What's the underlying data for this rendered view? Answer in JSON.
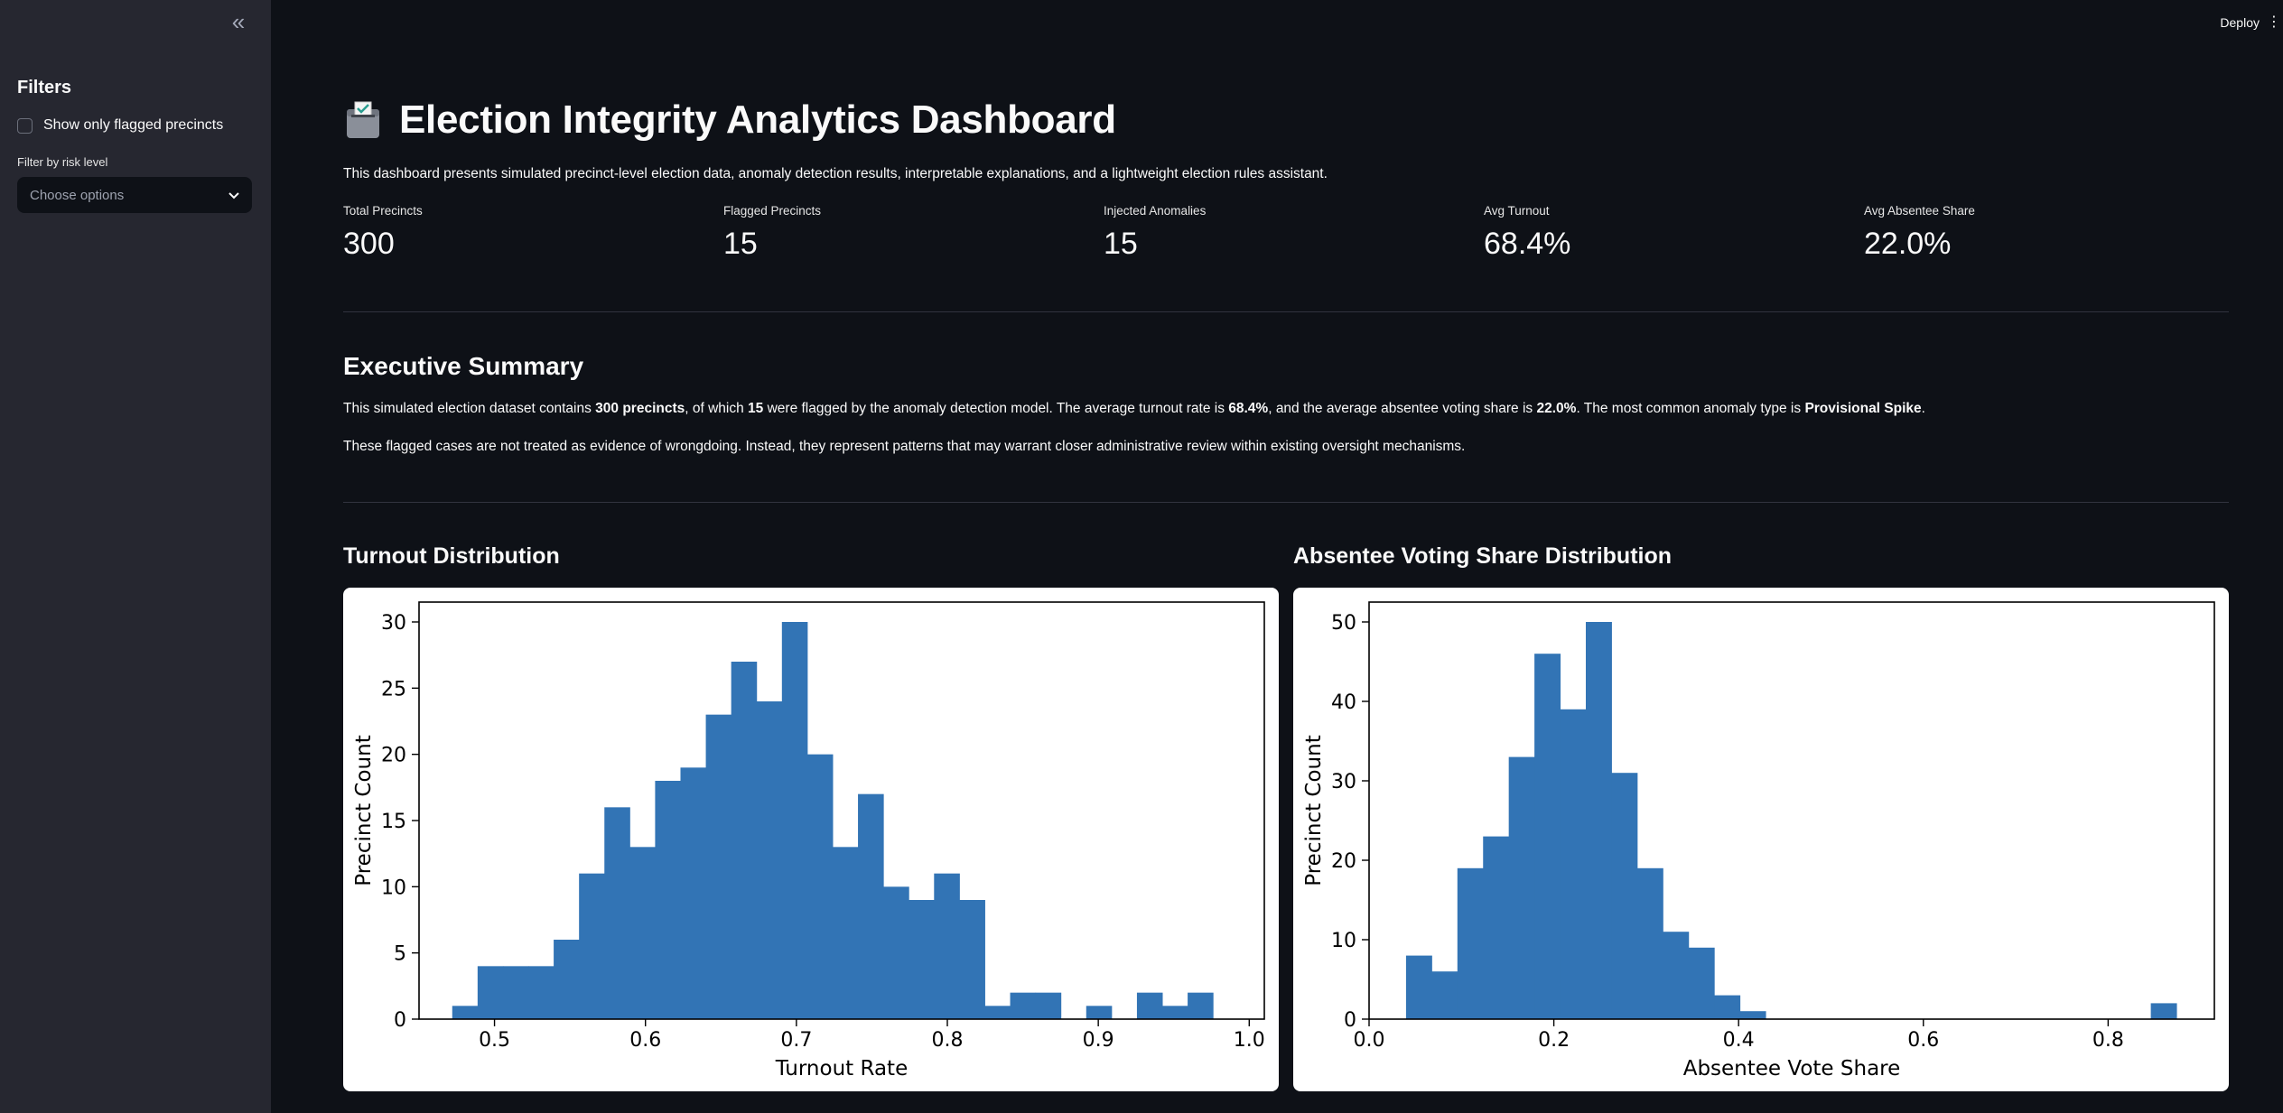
{
  "sidebar": {
    "collapse_icon": "double-chevron-left-icon",
    "title": "Filters",
    "checkbox_label": "Show only flagged precincts",
    "risk_label": "Filter by risk level",
    "risk_placeholder": "Choose options"
  },
  "header": {
    "deploy_label": "Deploy",
    "menu_icon": "⋮"
  },
  "main": {
    "title": "Election Integrity Analytics Dashboard",
    "intro": "This dashboard presents simulated precinct-level election data, anomaly detection results, interpretable explanations, and a lightweight election rules assistant.",
    "metrics": [
      {
        "label": "Total Precincts",
        "value": "300"
      },
      {
        "label": "Flagged Precincts",
        "value": "15"
      },
      {
        "label": "Injected Anomalies",
        "value": "15"
      },
      {
        "label": "Avg Turnout",
        "value": "68.4%"
      },
      {
        "label": "Avg Absentee Share",
        "value": "22.0%"
      }
    ],
    "summary_title": "Executive Summary",
    "summary_p1": {
      "a": "This simulated election dataset contains ",
      "b": "300 precincts",
      "c": ", of which ",
      "d": "15",
      "e": " were flagged by the anomaly detection model. The average turnout rate is ",
      "f": "68.4%",
      "g": ", and the average absentee voting share is ",
      "h": "22.0%",
      "i": ". The most common anomaly type is ",
      "j": "Provisional Spike",
      "k": "."
    },
    "summary_p2": "These flagged cases are not treated as evidence of wrongdoing. Instead, they represent patterns that may warrant closer administrative review within existing oversight mechanisms.",
    "turnout_title": "Turnout Distribution",
    "absentee_title": "Absentee Voting Share Distribution"
  },
  "colors": {
    "bar": "#3274b5",
    "bg": "#0e1117",
    "sidebar": "#262730"
  },
  "chart_data": [
    {
      "type": "bar",
      "title": "Turnout Distribution",
      "xlabel": "Turnout Rate",
      "ylabel": "Precinct Count",
      "bin_start": 0.472,
      "bin_width": 0.0168,
      "values": [
        1,
        4,
        4,
        4,
        6,
        11,
        16,
        13,
        18,
        19,
        23,
        27,
        24,
        30,
        20,
        13,
        17,
        10,
        9,
        11,
        9,
        1,
        2,
        2,
        0,
        1,
        0,
        2,
        1,
        2
      ],
      "xlim": [
        0.45,
        1.01
      ],
      "ylim": [
        0,
        31.5
      ],
      "xticks": [
        0.5,
        0.6,
        0.7,
        0.8,
        0.9,
        1.0
      ],
      "xtick_labels": [
        "0.5",
        "0.6",
        "0.7",
        "0.8",
        "0.9",
        "1.0"
      ],
      "yticks": [
        0,
        5,
        10,
        15,
        20,
        25,
        30
      ],
      "ytick_labels": [
        "0",
        "5",
        "10",
        "15",
        "20",
        "25",
        "30"
      ]
    },
    {
      "type": "bar",
      "title": "Absentee Voting Share Distribution",
      "xlabel": "Absentee Vote Share",
      "ylabel": "Precinct Count",
      "bin_start": 0.04,
      "bin_width": 0.0278,
      "values": [
        8,
        6,
        19,
        23,
        33,
        46,
        39,
        50,
        31,
        19,
        11,
        9,
        3,
        1,
        0,
        0,
        0,
        0,
        0,
        0,
        0,
        0,
        0,
        0,
        0,
        0,
        0,
        0,
        0,
        2
      ],
      "xlim": [
        0.0,
        0.915
      ],
      "ylim": [
        0,
        52.5
      ],
      "xticks": [
        0.0,
        0.2,
        0.4,
        0.6,
        0.8
      ],
      "xtick_labels": [
        "0.0",
        "0.2",
        "0.4",
        "0.6",
        "0.8"
      ],
      "yticks": [
        0,
        10,
        20,
        30,
        40,
        50
      ],
      "ytick_labels": [
        "0",
        "10",
        "20",
        "30",
        "40",
        "50"
      ]
    }
  ]
}
